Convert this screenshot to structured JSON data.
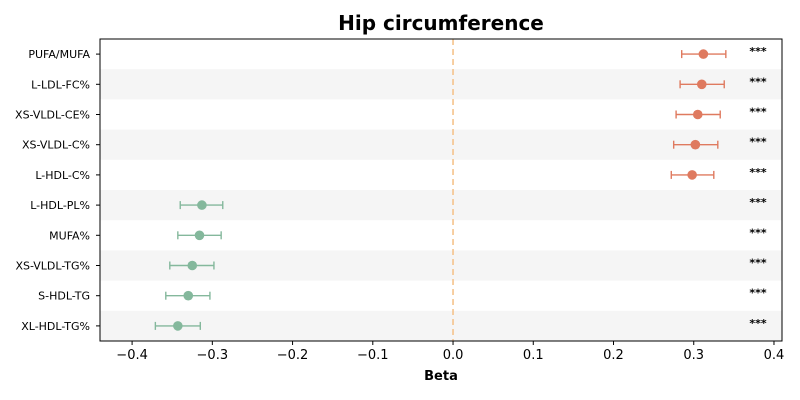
{
  "chart_data": {
    "type": "forest",
    "title": "Hip circumference",
    "xlabel": "Beta",
    "xlim": [
      -0.44,
      0.41
    ],
    "xticks": [
      -0.4,
      -0.3,
      -0.2,
      -0.1,
      0.0,
      0.1,
      0.2,
      0.3,
      0.4
    ],
    "xtick_labels": [
      "−0.4",
      "−0.3",
      "−0.2",
      "−0.1",
      "0.0",
      "0.1",
      "0.2",
      "0.3",
      "0.4"
    ],
    "reference_line": 0.0,
    "reference_line_color": "#f5c38c",
    "positive_color": "#df7a5f",
    "negative_color": "#84b89c",
    "band_color": "#f5f5f5",
    "grid": false,
    "rows": [
      {
        "label": "PUFA/MUFA",
        "beta": 0.312,
        "ci_low": 0.285,
        "ci_high": 0.34,
        "sig": "***"
      },
      {
        "label": "L-LDL-FC%",
        "beta": 0.31,
        "ci_low": 0.283,
        "ci_high": 0.338,
        "sig": "***"
      },
      {
        "label": "XS-VLDL-CE%",
        "beta": 0.305,
        "ci_low": 0.278,
        "ci_high": 0.333,
        "sig": "***"
      },
      {
        "label": "XS-VLDL-C%",
        "beta": 0.302,
        "ci_low": 0.275,
        "ci_high": 0.33,
        "sig": "***"
      },
      {
        "label": "L-HDL-C%",
        "beta": 0.298,
        "ci_low": 0.272,
        "ci_high": 0.325,
        "sig": "***"
      },
      {
        "label": "L-HDL-PL%",
        "beta": -0.313,
        "ci_low": -0.34,
        "ci_high": -0.287,
        "sig": "***"
      },
      {
        "label": "MUFA%",
        "beta": -0.316,
        "ci_low": -0.343,
        "ci_high": -0.289,
        "sig": "***"
      },
      {
        "label": "XS-VLDL-TG%",
        "beta": -0.325,
        "ci_low": -0.353,
        "ci_high": -0.298,
        "sig": "***"
      },
      {
        "label": "S-HDL-TG",
        "beta": -0.33,
        "ci_low": -0.358,
        "ci_high": -0.303,
        "sig": "***"
      },
      {
        "label": "XL-HDL-TG%",
        "beta": -0.343,
        "ci_low": -0.371,
        "ci_high": -0.315,
        "sig": "***"
      }
    ]
  }
}
